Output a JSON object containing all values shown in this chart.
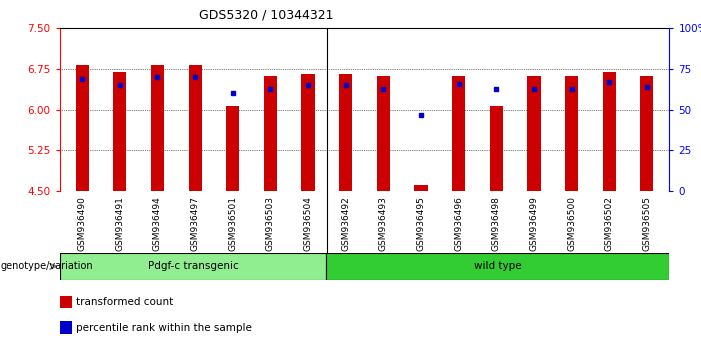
{
  "title": "GDS5320 / 10344321",
  "samples": [
    "GSM936490",
    "GSM936491",
    "GSM936494",
    "GSM936497",
    "GSM936501",
    "GSM936503",
    "GSM936504",
    "GSM936492",
    "GSM936493",
    "GSM936495",
    "GSM936496",
    "GSM936498",
    "GSM936499",
    "GSM936500",
    "GSM936502",
    "GSM936505"
  ],
  "transformed_count": [
    6.82,
    6.7,
    6.83,
    6.82,
    6.07,
    6.63,
    6.65,
    6.65,
    6.62,
    4.62,
    6.62,
    6.07,
    6.62,
    6.62,
    6.7,
    6.62
  ],
  "percentile_rank": [
    69,
    65,
    70,
    70,
    60,
    63,
    65,
    65,
    63,
    47,
    66,
    63,
    63,
    63,
    67,
    64
  ],
  "groups": [
    "Pdgf-c transgenic",
    "Pdgf-c transgenic",
    "Pdgf-c transgenic",
    "Pdgf-c transgenic",
    "Pdgf-c transgenic",
    "Pdgf-c transgenic",
    "Pdgf-c transgenic",
    "wild type",
    "wild type",
    "wild type",
    "wild type",
    "wild type",
    "wild type",
    "wild type",
    "wild type",
    "wild type"
  ],
  "ylim_left": [
    4.5,
    7.5
  ],
  "ylim_right": [
    0,
    100
  ],
  "yticks_left": [
    4.5,
    5.25,
    6.0,
    6.75,
    7.5
  ],
  "yticks_right": [
    0,
    25,
    50,
    75,
    100
  ],
  "bar_color": "#CC0000",
  "dot_color": "#0000CC",
  "bar_bottom": 4.5,
  "genotype_label": "genotype/variation",
  "legend_items": [
    [
      "transformed count",
      "#CC0000"
    ],
    [
      "percentile rank within the sample",
      "#0000CC"
    ]
  ],
  "separator_index": 7,
  "transgenic_color": "#90EE90",
  "wildtype_color": "#32CD32"
}
